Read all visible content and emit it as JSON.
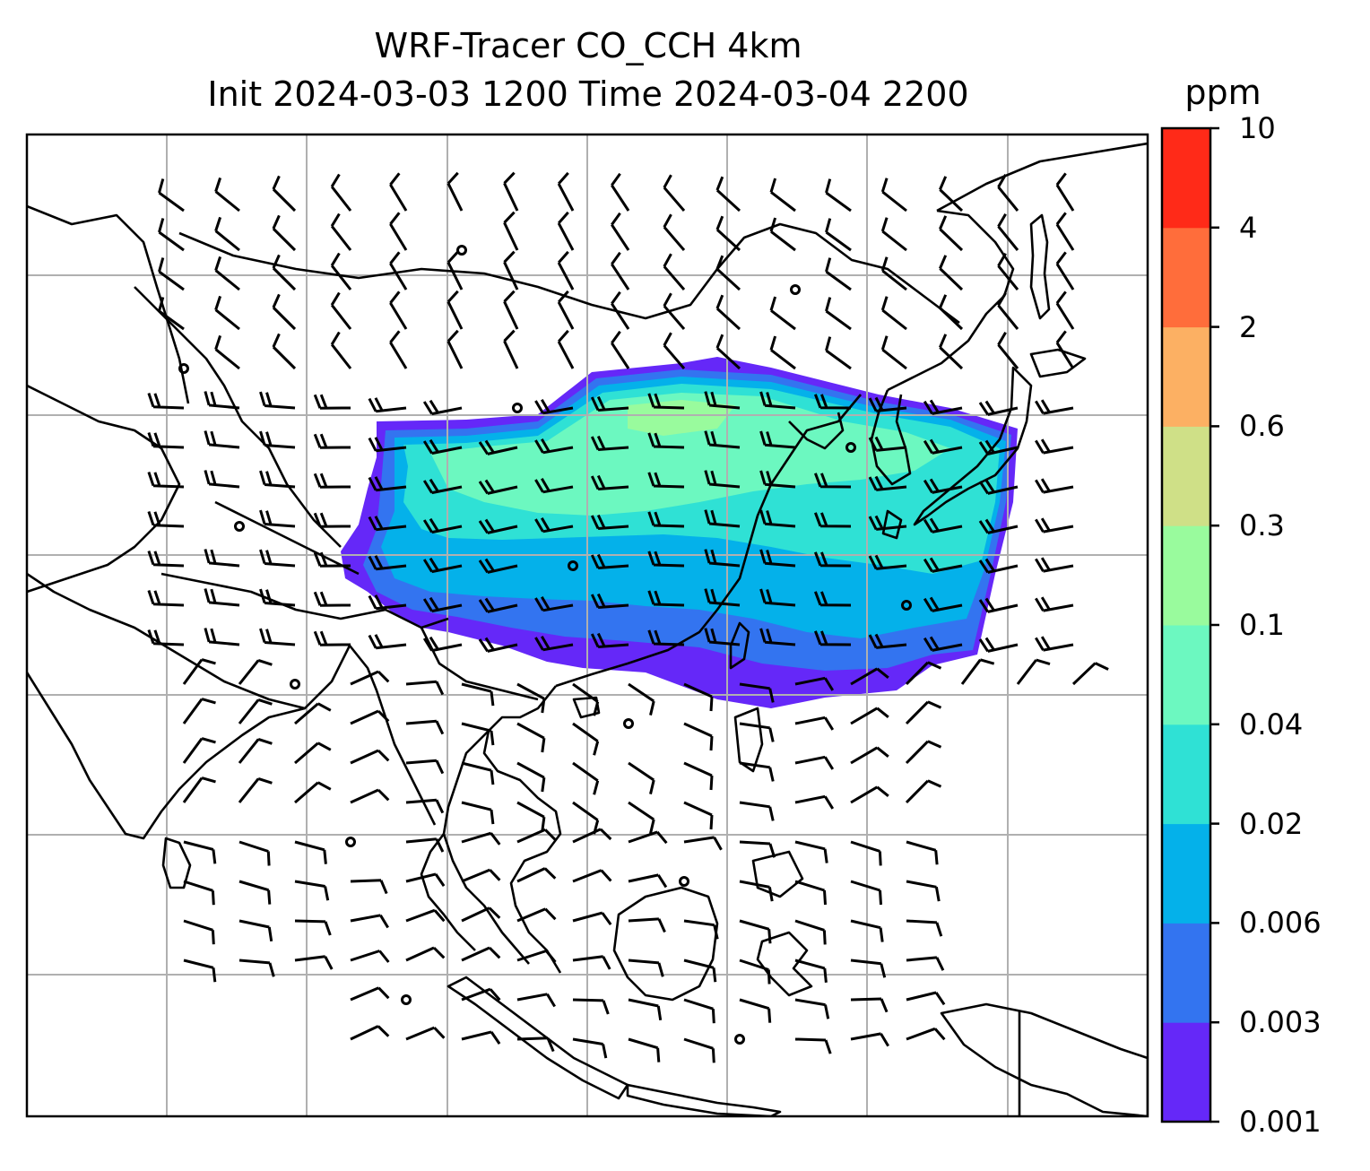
{
  "title": {
    "line1": "WRF-Tracer CO_CCH 4km",
    "line2": "Init 2024-03-03 1200 Time 2024-03-04 2200"
  },
  "colorbar": {
    "unit": "ppm",
    "levels": [
      {
        "label": "0.001",
        "color": "#6528f8"
      },
      {
        "label": "0.003",
        "color": "#3374f0"
      },
      {
        "label": "0.006",
        "color": "#04b1ea"
      },
      {
        "label": "0.02",
        "color": "#2fe1d5"
      },
      {
        "label": "0.04",
        "color": "#6cf8c0"
      },
      {
        "label": "0.1",
        "color": "#99fb9d"
      },
      {
        "label": "0.3",
        "color": "#cfe087"
      },
      {
        "label": "0.6",
        "color": "#fcb063"
      },
      {
        "label": "2",
        "color": "#ff6d3b"
      },
      {
        "label": "4",
        "color": "#ff2a18"
      },
      {
        "label": "10",
        "color": null
      }
    ]
  },
  "map": {
    "gridlines": true,
    "grid_color": "#b0b0b0",
    "coastline_color": "#000000",
    "wind_barbs": true
  }
}
